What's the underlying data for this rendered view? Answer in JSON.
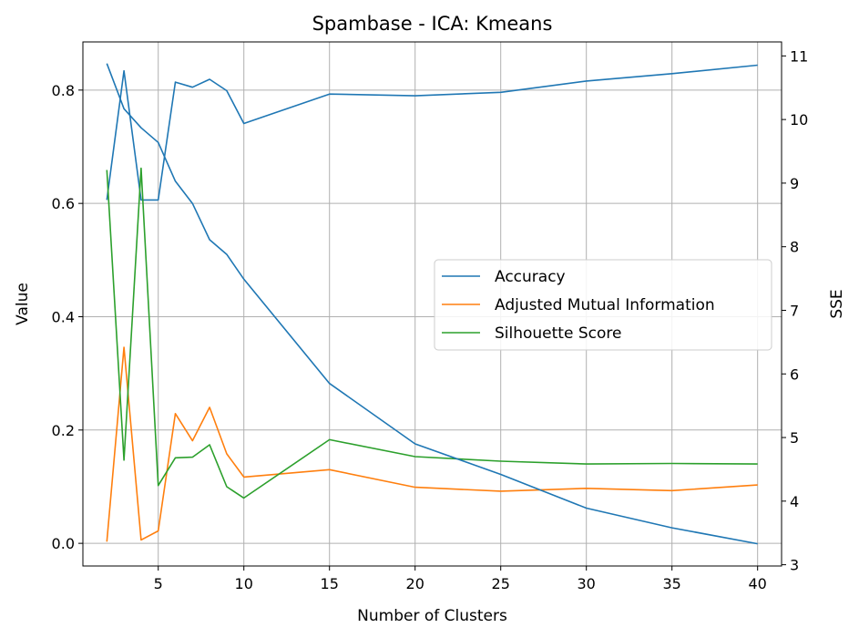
{
  "chart_data": {
    "type": "line",
    "title": "Spambase - ICA: Kmeans",
    "xlabel": "Number of Clusters",
    "ylabel": "Value",
    "y2label": "SSE",
    "xlim": [
      0.6,
      41.4
    ],
    "ylim": [
      -0.04,
      0.885
    ],
    "y2lim": [
      2.98,
      11.22
    ],
    "xticks": [
      5,
      10,
      15,
      20,
      25,
      30,
      35,
      40
    ],
    "yticks": [
      0.0,
      0.2,
      0.4,
      0.6,
      0.8
    ],
    "y2ticks": [
      3,
      4,
      5,
      6,
      7,
      8,
      9,
      10,
      11
    ],
    "grid": true,
    "legend_position": "center-right",
    "x": [
      2,
      3,
      4,
      5,
      6,
      7,
      8,
      9,
      10,
      15,
      20,
      25,
      30,
      35,
      40
    ],
    "series": [
      {
        "name": "Accuracy",
        "axis": "left",
        "color": "#1f77b4",
        "values": [
          0.606,
          0.834,
          0.606,
          0.606,
          0.814,
          0.805,
          0.819,
          0.799,
          0.741,
          0.793,
          0.79,
          0.796,
          0.816,
          0.829,
          0.844
        ]
      },
      {
        "name": "Adjusted Mutual Information",
        "axis": "left",
        "color": "#ff7f0e",
        "values": [
          0.003,
          0.346,
          0.006,
          0.022,
          0.229,
          0.181,
          0.24,
          0.158,
          0.117,
          0.13,
          0.099,
          0.092,
          0.097,
          0.093,
          0.103
        ]
      },
      {
        "name": "Silhouette Score",
        "axis": "left",
        "color": "#2ca02c",
        "values": [
          0.659,
          0.147,
          0.662,
          0.102,
          0.151,
          0.152,
          0.174,
          0.1,
          0.08,
          0.183,
          0.153,
          0.145,
          0.14,
          0.141,
          0.14
        ]
      },
      {
        "name": "SSE",
        "axis": "right",
        "color": "#1f77b4",
        "values": [
          10.88,
          10.17,
          9.87,
          9.64,
          9.03,
          8.68,
          8.11,
          7.88,
          7.49,
          5.85,
          4.9,
          4.42,
          3.89,
          3.58,
          3.33
        ]
      }
    ]
  }
}
